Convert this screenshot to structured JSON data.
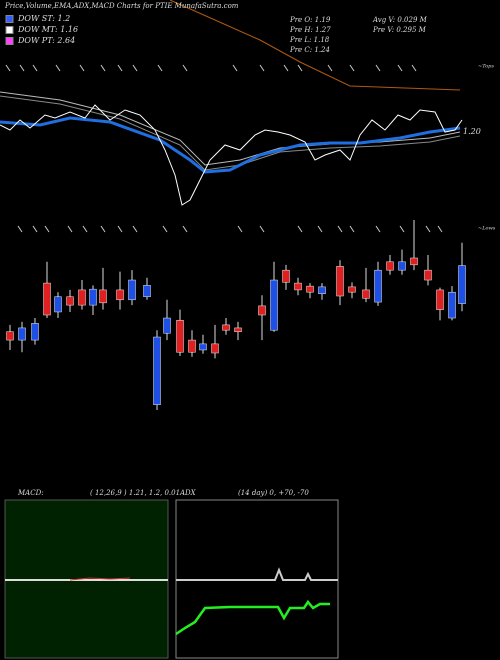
{
  "header": {
    "title": "Price,Volume,EMA,ADX,MACD Charts for PTIE MunafaSutra.com"
  },
  "legend": [
    {
      "label": "DOW ST: 1.2",
      "color": "#3060ff"
    },
    {
      "label": "DOW MT: 1.16",
      "color": "#ffffff"
    },
    {
      "label": "DOW PT: 2.64",
      "color": "#ff40ff"
    }
  ],
  "stats": {
    "pre_o": "Pre O: 1.19",
    "pre_h": "Pre H: 1.27",
    "pre_l": "Pre L: 1.18",
    "pre_c": "Pre C: 1.24",
    "avg_v": "Avg V: 0.029 M",
    "pre_v": "Pre V: 0.295 M"
  },
  "annotations": {
    "price": "1.20",
    "tops": "~Tops",
    "lows": "~Lows"
  },
  "chart_data": {
    "type": "candlestick",
    "ylim": [
      1.05,
      1.3
    ],
    "up_color": "#1e50e6",
    "down_color": "#e02020",
    "open": [
      1.153,
      1.142,
      1.142,
      1.217,
      1.179,
      1.199,
      1.208,
      1.188,
      1.208,
      1.208,
      1.195,
      1.199,
      1.057,
      1.151,
      1.168,
      1.142,
      1.129,
      1.137,
      1.162,
      1.158,
      1.187,
      1.155,
      1.234,
      1.217,
      1.213,
      1.203,
      1.239,
      1.212,
      1.208,
      1.192,
      1.245,
      1.234,
      1.25,
      1.234,
      1.208,
      1.171,
      1.19
    ],
    "high": [
      1.162,
      1.166,
      1.171,
      1.245,
      1.205,
      1.208,
      1.221,
      1.214,
      1.237,
      1.232,
      1.234,
      1.224,
      1.155,
      1.195,
      1.182,
      1.155,
      1.149,
      1.162,
      1.171,
      1.166,
      1.201,
      1.245,
      1.241,
      1.224,
      1.217,
      1.217,
      1.247,
      1.218,
      1.237,
      1.245,
      1.254,
      1.261,
      1.3,
      1.254,
      1.211,
      1.213,
      1.27
    ],
    "low": [
      1.129,
      1.126,
      1.136,
      1.171,
      1.171,
      1.179,
      1.182,
      1.175,
      1.182,
      1.182,
      1.188,
      1.195,
      1.05,
      1.142,
      1.121,
      1.12,
      1.124,
      1.118,
      1.149,
      1.142,
      1.142,
      1.153,
      1.208,
      1.201,
      1.197,
      1.195,
      1.188,
      1.197,
      1.192,
      1.187,
      1.228,
      1.228,
      1.234,
      1.214,
      1.168,
      1.168,
      1.18
    ],
    "close": [
      1.142,
      1.158,
      1.164,
      1.175,
      1.199,
      1.188,
      1.188,
      1.209,
      1.191,
      1.195,
      1.221,
      1.214,
      1.146,
      1.171,
      1.126,
      1.126,
      1.137,
      1.125,
      1.155,
      1.153,
      1.175,
      1.221,
      1.218,
      1.208,
      1.205,
      1.212,
      1.2,
      1.205,
      1.197,
      1.234,
      1.234,
      1.245,
      1.241,
      1.221,
      1.182,
      1.205,
      1.24
    ]
  },
  "macd": {
    "title": "MACD:",
    "values": "( 12,26,9 ) 1.21, 1.2, 0.01"
  },
  "adx": {
    "title": "ADX",
    "values": "(14 day) 0, +70, -70"
  }
}
